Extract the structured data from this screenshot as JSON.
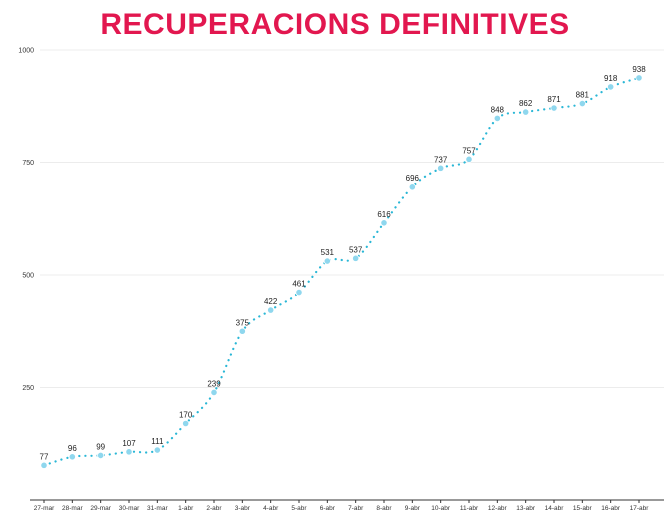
{
  "chart_data": {
    "type": "line",
    "title": "RECUPERACIONS DEFINITIVES",
    "xlabel": "",
    "ylabel": "",
    "categories": [
      "27-mar",
      "28-mar",
      "29-mar",
      "30-mar",
      "31-mar",
      "1-abr",
      "2-abr",
      "3-abr",
      "4-abr",
      "5-abr",
      "6-abr",
      "7-abr",
      "8-abr",
      "9-abr",
      "10-abr",
      "11-abr",
      "12-abr",
      "13-abr",
      "14-abr",
      "15-abr",
      "16-abr",
      "17-abr"
    ],
    "series": [
      {
        "values": [
          77,
          96,
          99,
          107,
          111,
          170,
          239,
          375,
          422,
          461,
          531,
          537,
          616,
          696,
          737,
          757,
          848,
          862,
          871,
          881,
          918,
          938
        ]
      }
    ],
    "ylim": [
      0,
      1000
    ],
    "yticks": [
      250,
      500,
      750,
      1000
    ],
    "grid": true,
    "legend": "none",
    "colors": {
      "title": "#e2174f",
      "line": "#2ab7d6",
      "marker": "#8fd7ee",
      "grid": "#ececec"
    }
  }
}
